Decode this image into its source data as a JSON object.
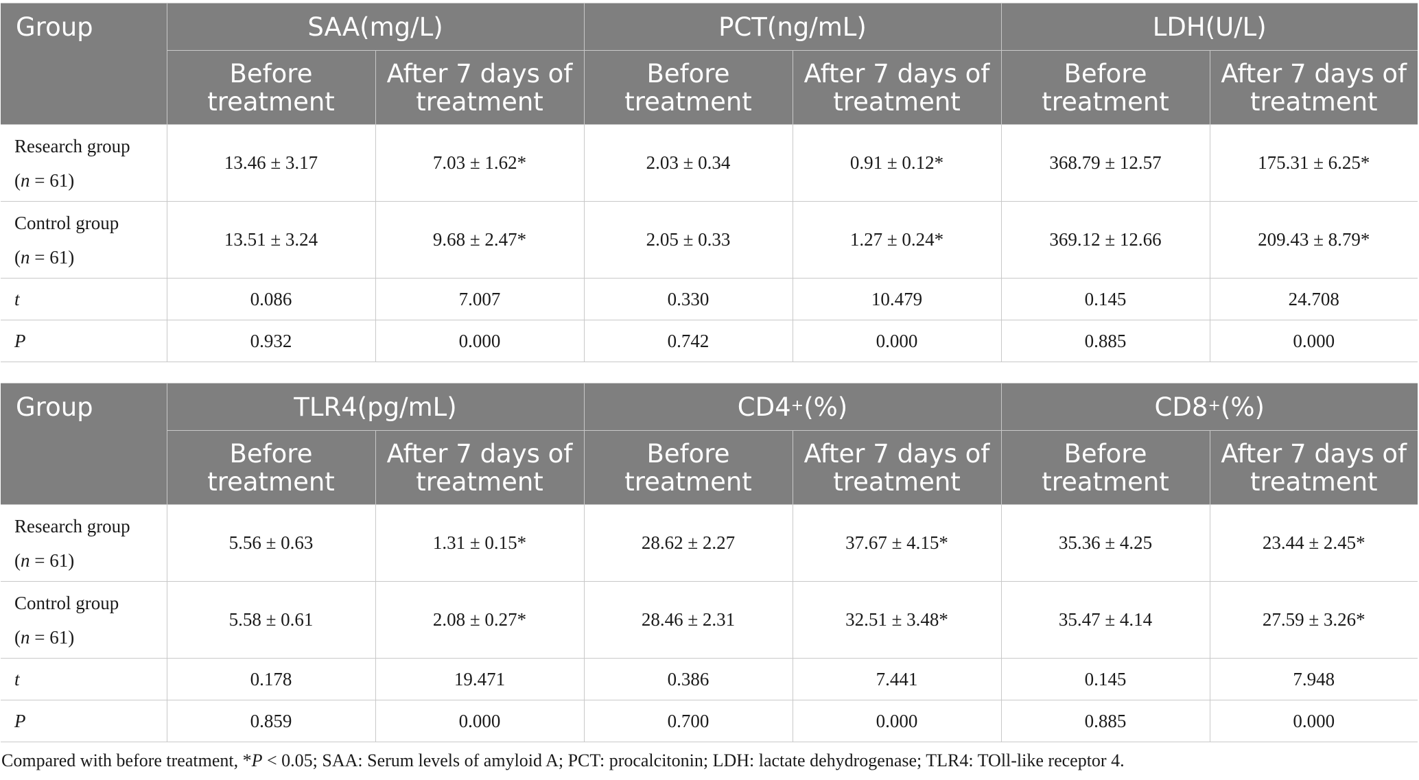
{
  "col_before": [
    "Before",
    "treatment"
  ],
  "col_after": [
    "After 7 days of",
    "treatment"
  ],
  "tables": [
    {
      "group_label": "Group",
      "headers": [
        "SAA(mg/L)",
        "PCT(ng/mL)",
        "LDH(U/L)"
      ],
      "rows": [
        {
          "label": "Research group",
          "n_prefix": "(",
          "n_var": "n",
          "n_suffix": " = 61)",
          "values": [
            "13.46 ± 3.17",
            "7.03 ± 1.62*",
            "2.03 ± 0.34",
            "0.91 ± 0.12*",
            "368.79 ± 12.57",
            "175.31 ± 6.25*"
          ]
        },
        {
          "label": "Control group",
          "n_prefix": "(",
          "n_var": "n",
          "n_suffix": " = 61)",
          "values": [
            "13.51 ± 3.24",
            "9.68 ± 2.47*",
            "2.05 ± 0.33",
            "1.27 ± 0.24*",
            "369.12 ± 12.66",
            "209.43 ± 8.79*"
          ]
        },
        {
          "label": "t",
          "values": [
            "0.086",
            "7.007",
            "0.330",
            "10.479",
            "0.145",
            "24.708"
          ]
        },
        {
          "label": "P",
          "values": [
            "0.932",
            "0.000",
            "0.742",
            "0.000",
            "0.885",
            "0.000"
          ]
        }
      ]
    },
    {
      "group_label": "Group",
      "headers": [
        "TLR4(pg/mL)",
        "CD4",
        "CD8"
      ],
      "header_sup": [
        "",
        "+",
        "+"
      ],
      "header_suffix": [
        "",
        "(%)",
        "(%)"
      ],
      "rows": [
        {
          "label": "Research group",
          "n_prefix": "(",
          "n_var": "n",
          "n_suffix": " = 61)",
          "values": [
            "5.56 ± 0.63",
            "1.31 ± 0.15*",
            "28.62 ± 2.27",
            "37.67 ± 4.15*",
            "35.36 ± 4.25",
            "23.44 ± 2.45*"
          ]
        },
        {
          "label": "Control group",
          "n_prefix": "(",
          "n_var": "n",
          "n_suffix": " = 61)",
          "values": [
            "5.58 ± 0.61",
            "2.08 ± 0.27*",
            "28.46 ± 2.31",
            "32.51 ± 3.48*",
            "35.47 ± 4.14",
            "27.59 ± 3.26*"
          ]
        },
        {
          "label": "t",
          "values": [
            "0.178",
            "19.471",
            "0.386",
            "7.441",
            "0.145",
            "7.948"
          ]
        },
        {
          "label": "P",
          "values": [
            "0.859",
            "0.000",
            "0.700",
            "0.000",
            "0.885",
            "0.000"
          ]
        }
      ]
    }
  ],
  "footnote": {
    "pre": "Compared with before treatment, *",
    "p_var": "P",
    "post": " < 0.05; SAA: Serum levels of amyloid A; PCT: procalcitonin; LDH: lactate dehydrogenase; TLR4: TOll-like receptor 4."
  }
}
